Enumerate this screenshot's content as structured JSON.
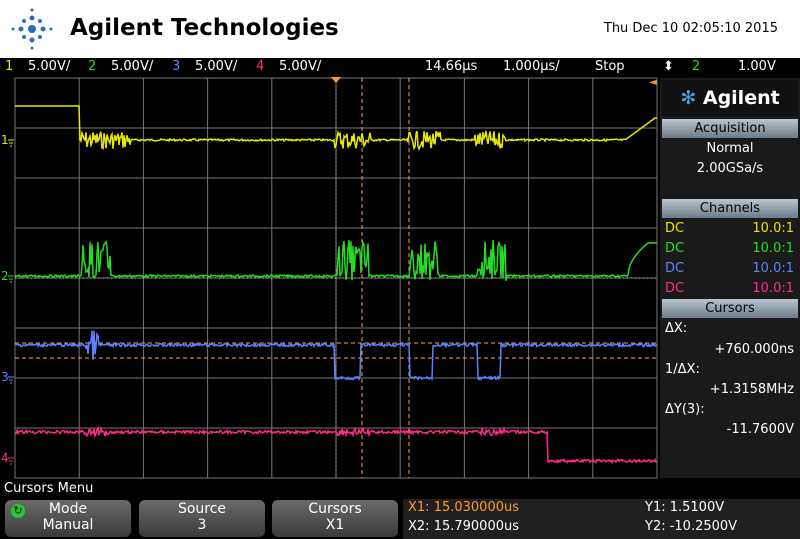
{
  "header": {
    "brand": "Agilent Technologies",
    "datetime": "Thu Dec 10 02:05:10 2015"
  },
  "status_bar": {
    "channels": [
      {
        "number": "1",
        "scale": "5.00V/"
      },
      {
        "number": "2",
        "scale": "5.00V/"
      },
      {
        "number": "3",
        "scale": "5.00V/"
      },
      {
        "number": "4",
        "scale": "5.00V/"
      }
    ],
    "delay": "14.66µs",
    "timebase": "1.000µs/",
    "run_state": "Stop",
    "trigger_source": "2",
    "trigger_level": "1.00V"
  },
  "markers": [
    "1",
    "2",
    "3",
    "4"
  ],
  "side_panel": {
    "logo": "Agilent",
    "acquisition": {
      "title": "Acquisition",
      "mode": "Normal",
      "rate": "2.00GSa/s"
    },
    "channels": {
      "title": "Channels",
      "rows": [
        {
          "coupling": "DC",
          "probe": "10.0:1"
        },
        {
          "coupling": "DC",
          "probe": "10.0:1"
        },
        {
          "coupling": "DC",
          "probe": "10.0:1"
        },
        {
          "coupling": "DC",
          "probe": "10.0:1"
        }
      ]
    },
    "cursors": {
      "title": "Cursors",
      "readouts": [
        {
          "label": "ΔX:",
          "value": "+760.000ns"
        },
        {
          "label": "1/ΔX:",
          "value": "+1.3158MHz"
        },
        {
          "label": "ΔY(3):",
          "value": "-11.7600V"
        }
      ]
    }
  },
  "menu": {
    "title": "Cursors Menu",
    "softkeys": [
      {
        "label": "Mode",
        "value": "Manual"
      },
      {
        "label": "Source",
        "value": "3"
      },
      {
        "label": "Cursors",
        "value": "X1"
      }
    ],
    "readout": {
      "x1": "X1: 15.030000us",
      "x2": "X2: 15.790000us",
      "y1": "Y1: 1.5100V",
      "y2": "Y2: -10.2500V"
    }
  }
}
